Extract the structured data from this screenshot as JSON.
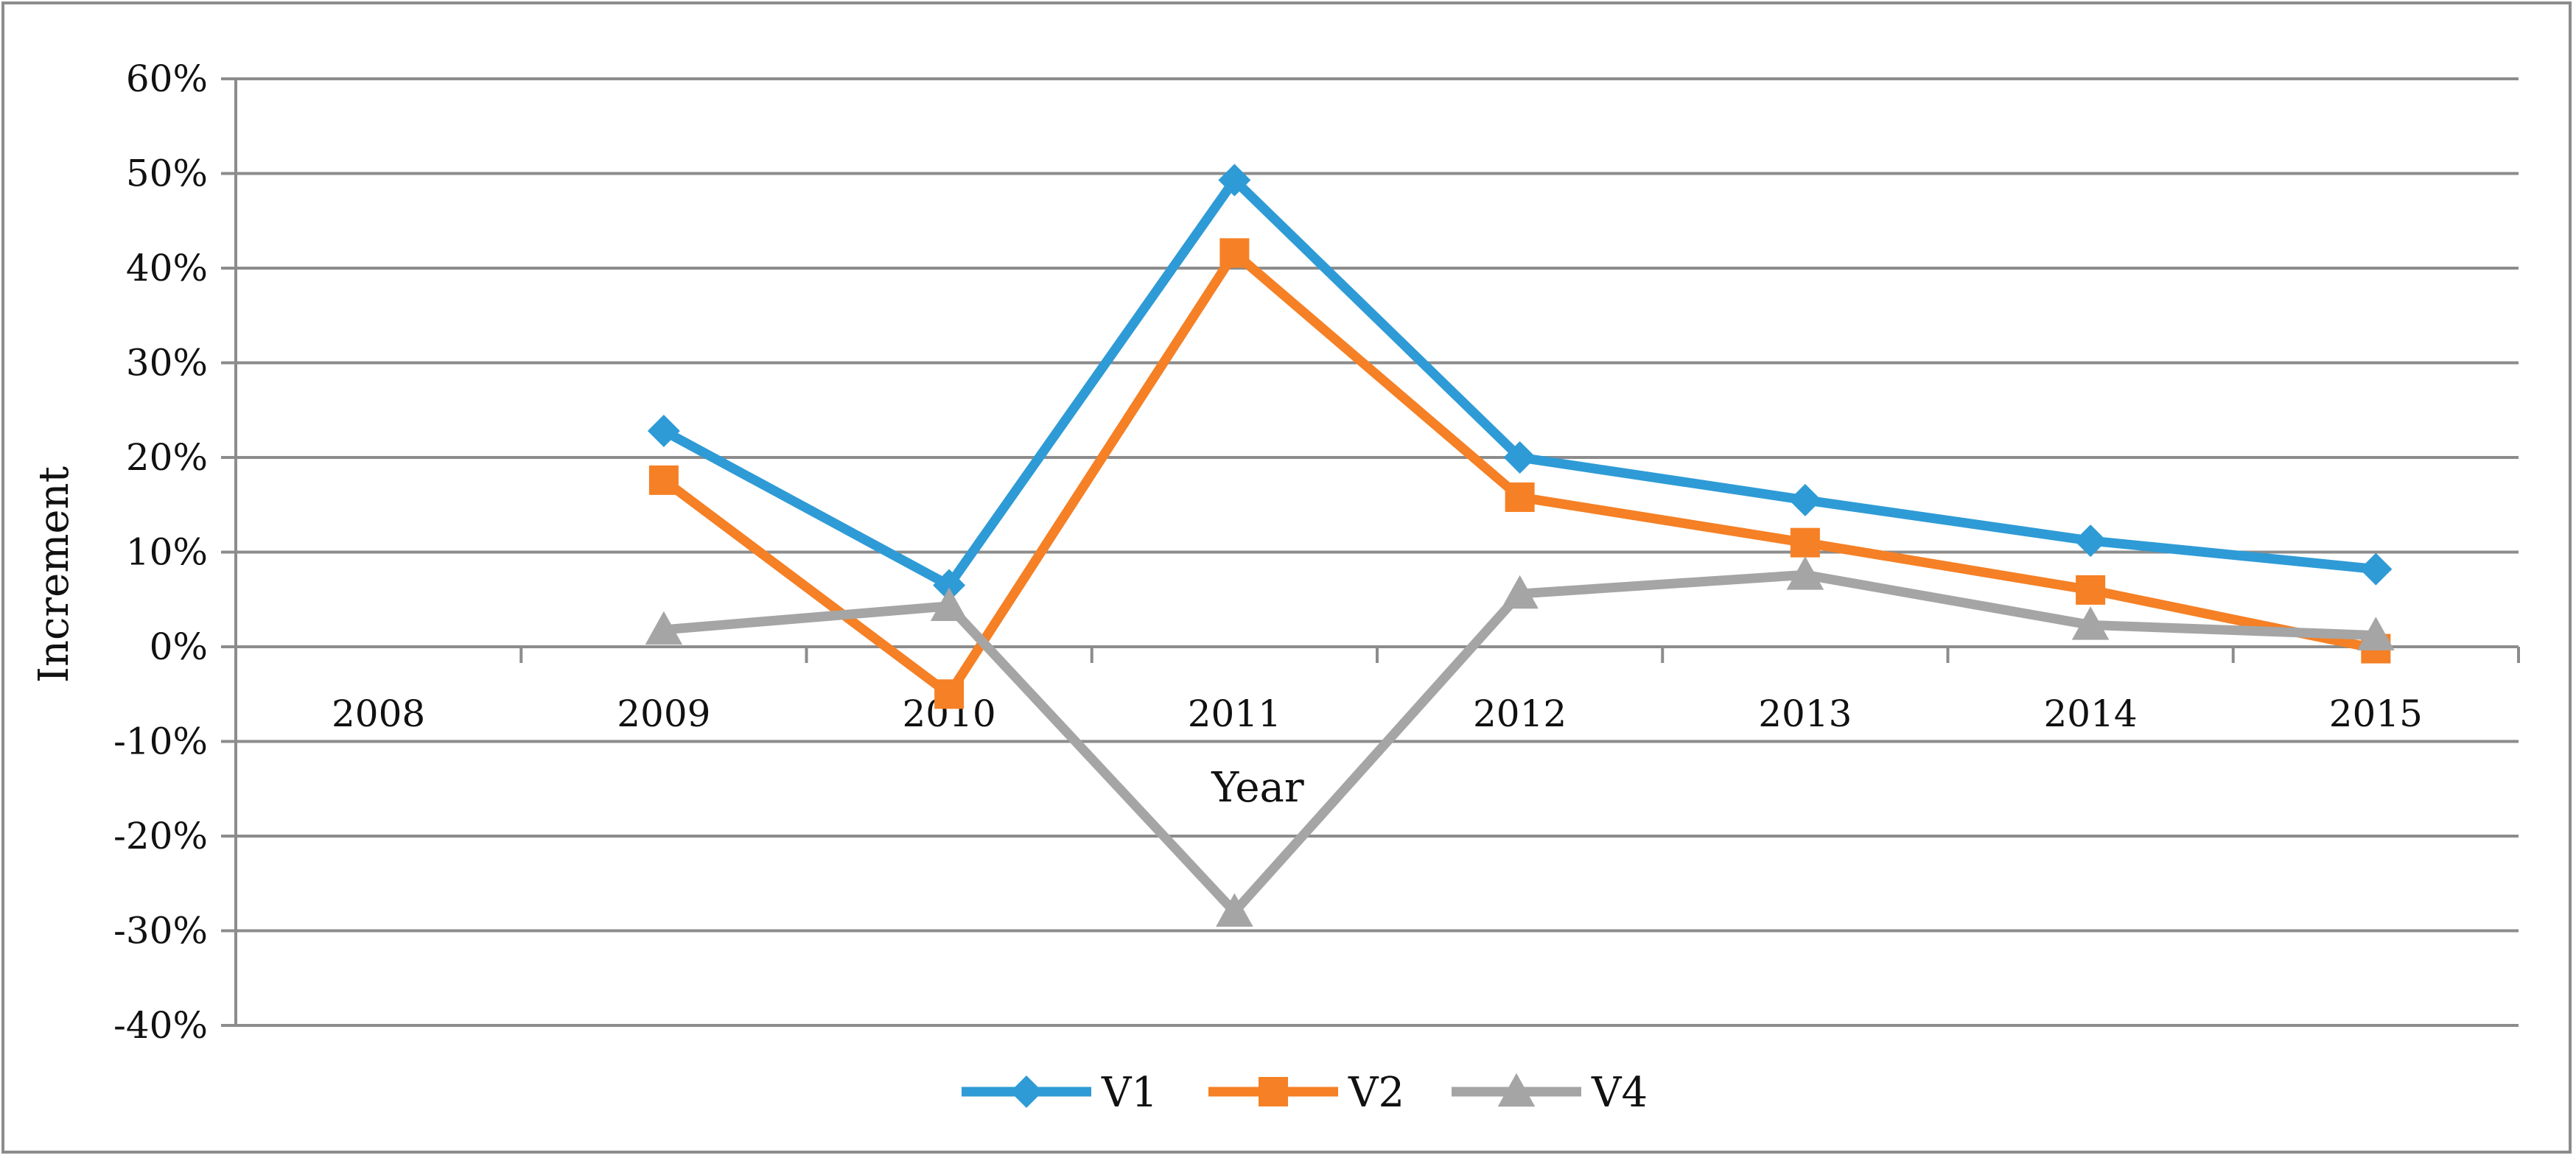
{
  "chart_data": {
    "type": "line",
    "title": "",
    "xlabel": "Year",
    "ylabel": "Increment",
    "categories": [
      "2008",
      "2009",
      "2010",
      "2011",
      "2012",
      "2013",
      "2014",
      "2015"
    ],
    "ylim": [
      -40,
      60
    ],
    "yticks": [
      60,
      50,
      40,
      30,
      20,
      10,
      0,
      -10,
      -20,
      -30,
      -40
    ],
    "ytick_labels": [
      "60%",
      "50%",
      "40%",
      "30%",
      "20%",
      "10%",
      "0%",
      "-10%",
      "-20%",
      "-30%",
      "-40%"
    ],
    "grid": true,
    "legend_position": "bottom",
    "series": [
      {
        "name": "V1",
        "color": "#2E9BD6",
        "marker": "diamond",
        "values": [
          null,
          22.8,
          6.5,
          49.3,
          20.0,
          15.5,
          11.2,
          8.2
        ]
      },
      {
        "name": "V2",
        "color": "#F58025",
        "marker": "square",
        "values": [
          null,
          17.6,
          -5.0,
          41.6,
          15.8,
          11.0,
          6.0,
          -0.2
        ]
      },
      {
        "name": "V4",
        "color": "#A5A5A5",
        "marker": "triangle",
        "values": [
          null,
          1.8,
          4.3,
          -28.0,
          5.6,
          7.6,
          2.3,
          1.2
        ]
      }
    ]
  }
}
